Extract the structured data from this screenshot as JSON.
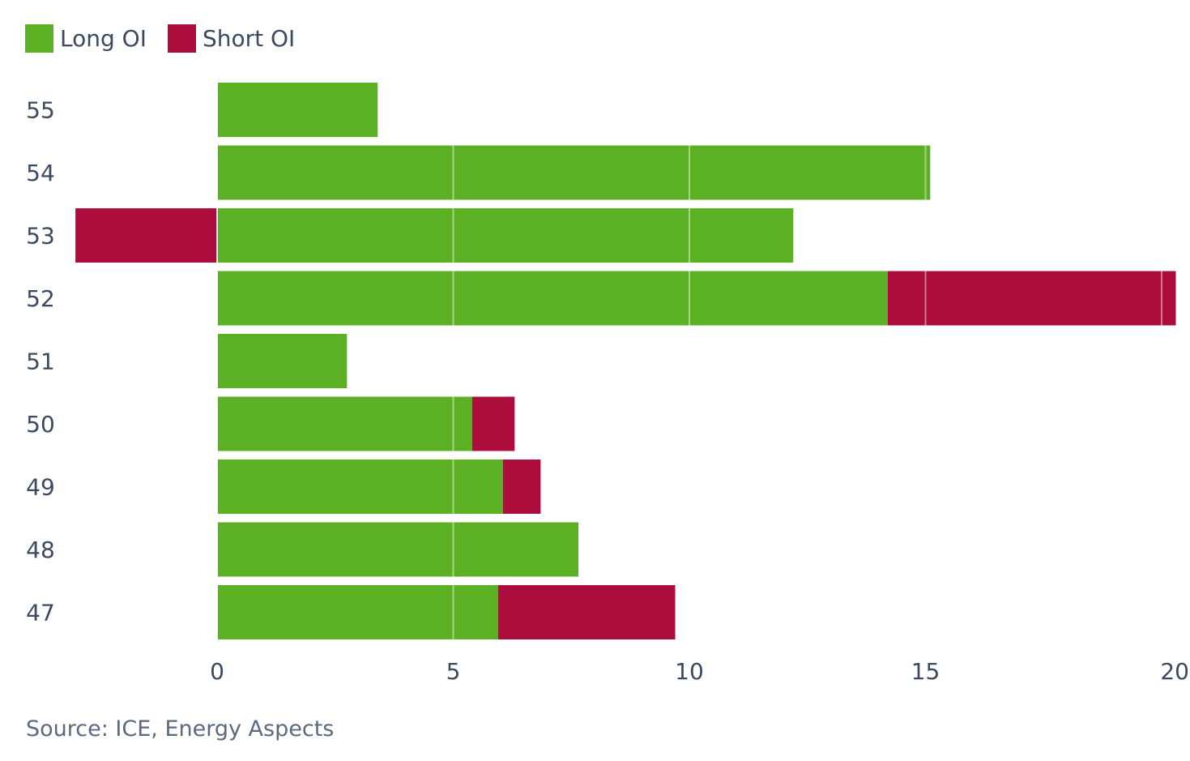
{
  "chart_data": {
    "type": "bar",
    "orientation": "horizontal",
    "stacked": true,
    "categories": [
      "55",
      "54",
      "53",
      "52",
      "51",
      "50",
      "49",
      "48",
      "47"
    ],
    "series": [
      {
        "name": "Long OI",
        "color": "#5cb023",
        "values": [
          3.4,
          15.1,
          12.2,
          14.2,
          2.75,
          5.4,
          6.05,
          7.65,
          5.95
        ]
      },
      {
        "name": "Short OI",
        "color": "#ad0d3c",
        "values": [
          0,
          0,
          -3.0,
          6.1,
          0,
          0.9,
          0.8,
          0,
          3.75
        ]
      }
    ],
    "xlim": [
      -3,
      20
    ],
    "xticks": [
      0,
      5,
      10,
      15,
      20
    ],
    "xtick_labels": [
      "0",
      "5",
      "10",
      "15",
      "20"
    ],
    "grid": true,
    "legend_position": "top-left",
    "title": "",
    "xlabel": "",
    "ylabel": ""
  },
  "source": "Source: ICE, Energy Aspects"
}
